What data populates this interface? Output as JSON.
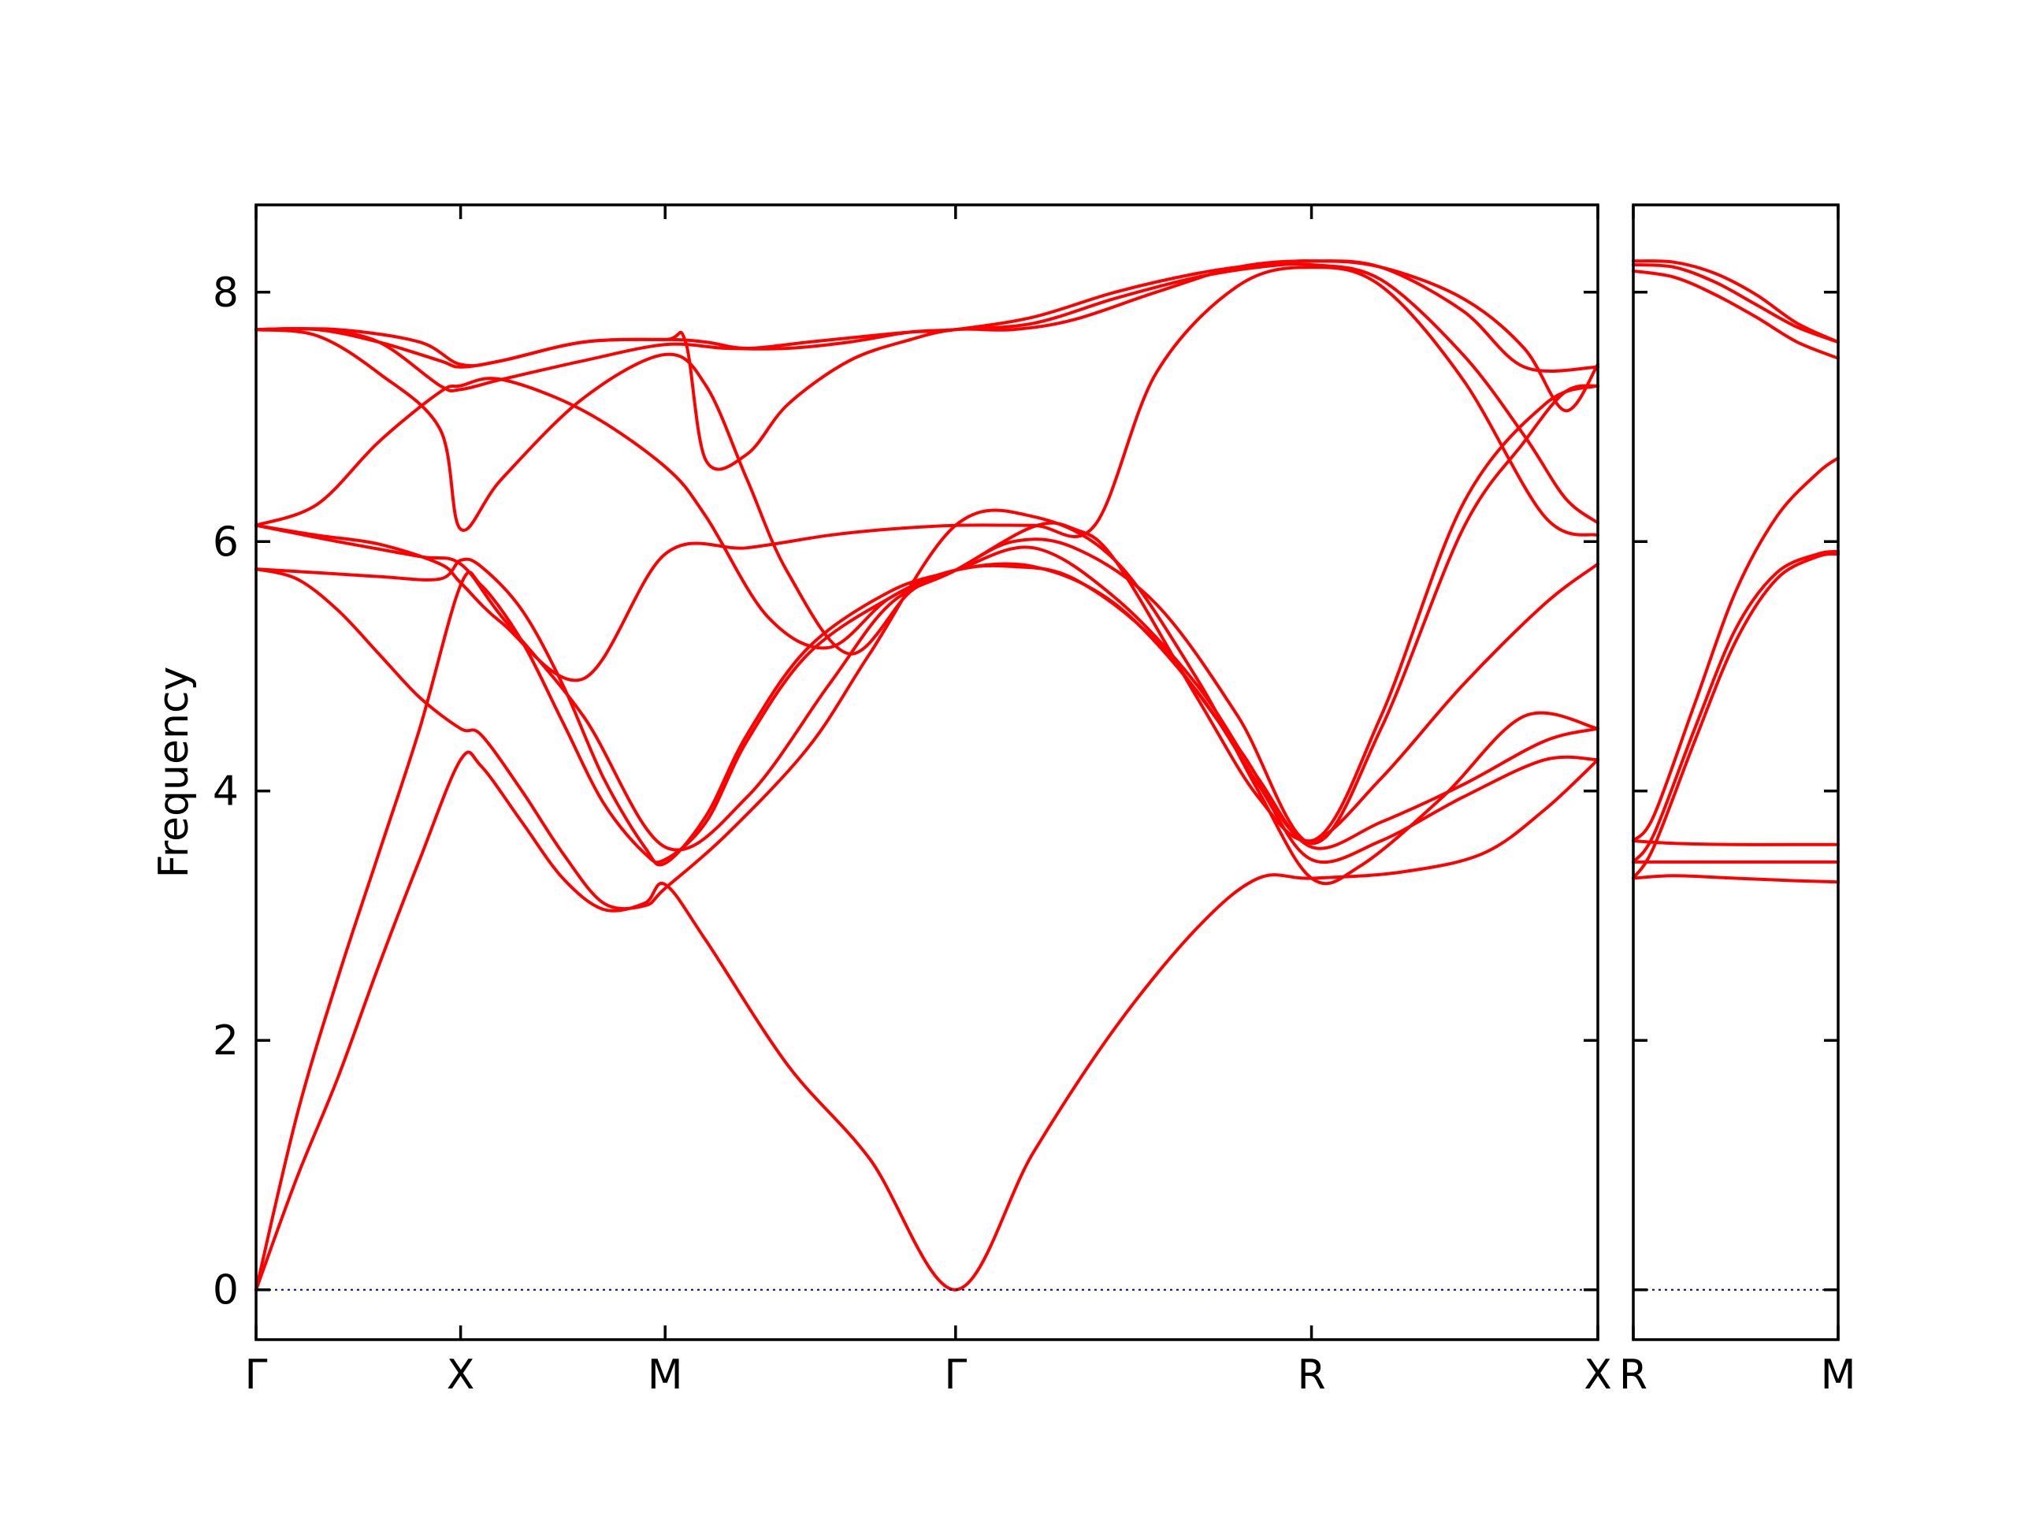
{
  "chart_data": {
    "type": "line",
    "ylabel": "Frequency",
    "xlabel": "",
    "ylim": [
      -0.4,
      8.7
    ],
    "yticks": [
      0,
      2,
      4,
      6,
      8
    ],
    "grid": false,
    "colors": {
      "bands": "#ff0000",
      "zero_line": "#00008b"
    },
    "panels": [
      {
        "name": "main",
        "high_symmetry_labels": [
          "Γ",
          "X",
          "M",
          "Γ",
          "R",
          "X"
        ],
        "label_positions": [
          0,
          0.5,
          1.0,
          1.71,
          2.58,
          3.28
        ],
        "x_range": [
          0,
          3.28
        ],
        "series": [
          {
            "name": "band-1",
            "x": [
              0,
              0.1,
              0.2,
              0.3,
              0.4,
              0.5,
              0.55,
              0.65,
              0.75,
              0.85,
              0.95,
              1.0,
              1.1,
              1.3,
              1.5,
              1.71,
              1.9,
              2.1,
              2.3,
              2.45,
              2.58,
              2.8,
              3.0,
              3.15,
              3.28
            ],
            "y": [
              0,
              0.9,
              1.7,
              2.6,
              3.45,
              4.25,
              4.2,
              3.75,
              3.3,
              3.05,
              3.1,
              3.25,
              2.8,
              1.8,
              1.05,
              0,
              1.1,
              2.1,
              2.9,
              3.3,
              3.3,
              3.35,
              3.5,
              3.85,
              4.25
            ]
          },
          {
            "name": "band-2",
            "x": [
              0,
              0.1,
              0.2,
              0.3,
              0.4,
              0.5,
              0.55,
              0.65,
              0.75,
              0.85,
              0.95,
              1.0,
              1.1,
              1.2,
              1.35,
              1.55,
              1.71,
              1.9,
              2.1,
              2.3,
              2.45,
              2.58,
              2.75,
              2.95,
              3.15,
              3.28
            ],
            "y": [
              0,
              1.4,
              2.5,
              3.5,
              4.5,
              5.65,
              5.65,
              5.2,
              4.55,
              3.9,
              3.5,
              3.45,
              3.75,
              4.4,
              5.1,
              5.55,
              5.77,
              5.8,
              5.5,
              4.8,
              4.05,
              3.45,
              3.6,
              3.95,
              4.25,
              4.25
            ]
          },
          {
            "name": "band-3",
            "x": [
              0,
              0.15,
              0.3,
              0.45,
              0.5,
              0.55,
              0.65,
              0.75,
              0.85,
              0.95,
              1.0,
              1.1,
              1.2,
              1.35,
              1.55,
              1.71,
              1.9,
              2.1,
              2.3,
              2.45,
              2.58,
              2.75,
              2.95,
              3.15,
              3.28
            ],
            "y": [
              5.78,
              5.75,
              5.72,
              5.7,
              5.85,
              5.8,
              5.45,
              4.85,
              4.1,
              3.55,
              3.42,
              3.8,
              4.45,
              5.15,
              5.6,
              5.77,
              5.95,
              5.55,
              4.85,
              4.1,
              3.55,
              3.75,
              4.05,
              4.4,
              4.5
            ]
          },
          {
            "name": "band-4",
            "x": [
              0,
              0.1,
              0.2,
              0.3,
              0.4,
              0.5,
              0.55,
              0.65,
              0.75,
              0.85,
              0.95,
              1.0,
              1.15,
              1.35,
              1.5,
              1.71,
              1.9,
              2.1,
              2.3,
              2.45,
              2.58,
              2.7,
              2.9,
              3.1,
              3.28
            ],
            "y": [
              5.78,
              5.7,
              5.45,
              5.1,
              4.75,
              4.5,
              4.45,
              4.0,
              3.5,
              3.1,
              3.08,
              3.22,
              3.65,
              4.35,
              5.1,
              6.13,
              6.2,
              5.85,
              4.9,
              4.0,
              3.3,
              3.4,
              3.95,
              4.6,
              4.5
            ]
          },
          {
            "name": "band-5",
            "x": [
              0,
              0.2,
              0.4,
              0.5,
              0.6,
              0.8,
              1.0,
              1.2,
              1.4,
              1.55,
              1.71,
              1.9,
              2.0,
              2.1,
              2.3,
              2.45,
              2.58,
              2.75,
              2.95,
              3.15,
              3.28
            ],
            "y": [
              6.13,
              6.0,
              5.88,
              5.82,
              5.4,
              4.6,
              3.55,
              3.95,
              4.85,
              5.5,
              5.77,
              6.12,
              6.1,
              5.85,
              4.75,
              3.95,
              3.6,
              4.1,
              4.85,
              5.5,
              5.82
            ]
          },
          {
            "name": "band-6",
            "x": [
              0,
              0.15,
              0.3,
              0.45,
              0.5,
              0.6,
              0.8,
              1.0,
              1.2,
              1.4,
              1.55,
              1.71,
              1.9,
              2.05,
              2.2,
              2.4,
              2.58,
              2.75,
              2.95,
              3.15,
              3.28
            ],
            "y": [
              6.13,
              6.05,
              5.98,
              5.82,
              5.67,
              5.35,
              4.9,
              5.9,
              5.95,
              6.05,
              6.1,
              6.13,
              6.13,
              6.13,
              7.35,
              8.05,
              8.2,
              8.05,
              7.3,
              6.2,
              6.05
            ]
          },
          {
            "name": "band-7",
            "x": [
              0,
              0.15,
              0.3,
              0.45,
              0.5,
              0.6,
              0.8,
              1.0,
              1.1,
              1.25,
              1.4,
              1.55,
              1.71,
              1.85,
              2.0,
              2.2,
              2.4,
              2.58,
              2.75,
              2.95,
              3.15,
              3.28
            ],
            "y": [
              6.13,
              6.3,
              6.8,
              7.2,
              7.25,
              7.3,
              7.05,
              6.6,
              6.2,
              5.4,
              5.15,
              5.55,
              5.77,
              5.8,
              5.7,
              5.2,
              4.35,
              3.6,
              4.6,
              6.3,
              7.1,
              7.25
            ]
          },
          {
            "name": "band-8",
            "x": [
              0,
              0.15,
              0.3,
              0.45,
              0.5,
              0.6,
              0.8,
              1.0,
              1.1,
              1.2,
              1.3,
              1.45,
              1.6,
              1.71,
              1.85,
              2.0,
              2.2,
              2.4,
              2.58,
              2.75,
              2.95,
              3.1,
              3.2,
              3.28
            ],
            "y": [
              7.7,
              7.65,
              7.35,
              6.9,
              6.1,
              6.5,
              7.15,
              7.5,
              7.25,
              6.5,
              5.75,
              5.1,
              5.6,
              5.77,
              6.0,
              5.95,
              5.5,
              4.6,
              3.58,
              4.5,
              6.1,
              6.8,
              7.2,
              7.25
            ]
          },
          {
            "name": "band-9",
            "x": [
              0,
              0.15,
              0.3,
              0.45,
              0.5,
              0.6,
              0.8,
              1.0,
              1.15,
              1.3,
              1.45,
              1.6,
              1.71,
              1.9,
              2.1,
              2.3,
              2.45,
              2.58,
              2.75,
              2.95,
              3.1,
              3.2,
              3.28
            ],
            "y": [
              7.7,
              7.7,
              7.6,
              7.25,
              7.22,
              7.3,
              7.45,
              7.58,
              7.55,
              7.55,
              7.6,
              7.68,
              7.7,
              7.75,
              7.95,
              8.12,
              8.2,
              8.22,
              8.1,
              7.5,
              6.85,
              6.35,
              6.15
            ]
          },
          {
            "name": "band-10",
            "x": [
              0,
              0.15,
              0.3,
              0.45,
              0.5,
              0.6,
              0.8,
              1.0,
              1.1,
              1.2,
              1.35,
              1.5,
              1.6,
              1.71,
              1.9,
              2.1,
              2.3,
              2.45,
              2.58,
              2.75,
              2.95,
              3.1,
              3.28
            ],
            "y": [
              7.7,
              7.7,
              7.6,
              7.45,
              7.4,
              7.45,
              7.6,
              7.62,
              7.6,
              7.55,
              7.6,
              7.65,
              7.68,
              7.7,
              7.8,
              8.0,
              8.15,
              8.22,
              8.25,
              8.2,
              7.85,
              7.4,
              7.4
            ]
          },
          {
            "name": "band-11",
            "x": [
              0,
              0.2,
              0.4,
              0.5,
              0.6,
              0.8,
              1.0,
              1.05,
              1.1,
              1.2,
              1.3,
              1.45,
              1.6,
              1.71,
              1.85,
              2.0,
              2.2,
              2.4,
              2.58,
              2.75,
              2.95,
              3.1,
              3.2,
              3.28
            ],
            "y": [
              7.7,
              7.7,
              7.6,
              7.42,
              7.45,
              7.6,
              7.62,
              7.6,
              6.65,
              6.7,
              7.1,
              7.45,
              7.62,
              7.7,
              7.7,
              7.78,
              8.0,
              8.2,
              8.25,
              8.2,
              7.95,
              7.55,
              7.05,
              7.42
            ]
          }
        ]
      },
      {
        "name": "side",
        "high_symmetry_labels": [
          "R",
          "M"
        ],
        "label_positions": [
          0,
          0.5
        ],
        "x_range": [
          0,
          0.5
        ],
        "series": [
          {
            "name": "band-1",
            "x": [
              0,
              0.1,
              0.25,
              0.4,
              0.5
            ],
            "y": [
              3.3,
              3.32,
              3.3,
              3.28,
              3.27
            ]
          },
          {
            "name": "band-2",
            "x": [
              0,
              0.1,
              0.25,
              0.4,
              0.5
            ],
            "y": [
              3.43,
              3.43,
              3.43,
              3.43,
              3.43
            ]
          },
          {
            "name": "band-3",
            "x": [
              0,
              0.1,
              0.25,
              0.4,
              0.5
            ],
            "y": [
              3.6,
              3.58,
              3.57,
              3.57,
              3.57
            ]
          },
          {
            "name": "band-4",
            "x": [
              0,
              0.05,
              0.15,
              0.25,
              0.35,
              0.45,
              0.5
            ],
            "y": [
              3.3,
              3.55,
              4.4,
              5.2,
              5.7,
              5.88,
              5.9
            ]
          },
          {
            "name": "band-5",
            "x": [
              0,
              0.05,
              0.15,
              0.25,
              0.35,
              0.45,
              0.5
            ],
            "y": [
              3.43,
              3.65,
              4.5,
              5.3,
              5.75,
              5.9,
              5.92
            ]
          },
          {
            "name": "band-6",
            "x": [
              0,
              0.05,
              0.15,
              0.25,
              0.35,
              0.45,
              0.5
            ],
            "y": [
              3.6,
              3.8,
              4.7,
              5.6,
              6.2,
              6.55,
              6.67
            ]
          },
          {
            "name": "band-7",
            "x": [
              0,
              0.1,
              0.2,
              0.3,
              0.4,
              0.5
            ],
            "y": [
              8.17,
              8.12,
              7.98,
              7.8,
              7.6,
              7.47
            ]
          },
          {
            "name": "band-8",
            "x": [
              0,
              0.1,
              0.2,
              0.3,
              0.4,
              0.5
            ],
            "y": [
              8.22,
              8.2,
              8.08,
              7.9,
              7.72,
              7.6
            ]
          },
          {
            "name": "band-9",
            "x": [
              0,
              0.1,
              0.2,
              0.3,
              0.4,
              0.5
            ],
            "y": [
              8.25,
              8.24,
              8.15,
              7.98,
              7.75,
              7.6
            ]
          }
        ]
      }
    ]
  }
}
